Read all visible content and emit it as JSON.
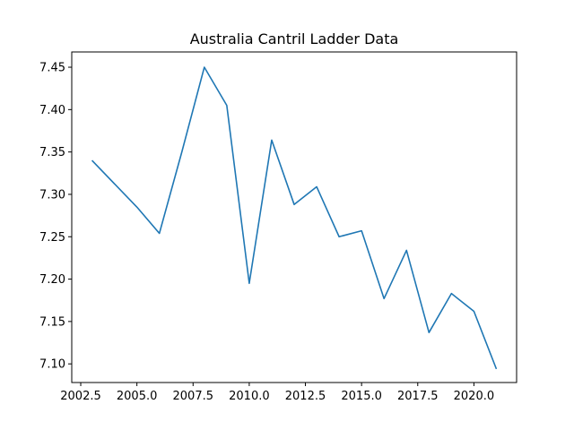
{
  "chart_data": {
    "type": "line",
    "title": "Australia Cantril Ladder Data",
    "xlabel": "",
    "ylabel": "",
    "xlim": [
      2002.1,
      2021.9
    ],
    "ylim": [
      7.078,
      7.468
    ],
    "x_ticks": [
      2002.5,
      2005.0,
      2007.5,
      2010.0,
      2012.5,
      2015.0,
      2017.5,
      2020.0
    ],
    "x_tick_labels": [
      "2002.5",
      "2005.0",
      "2007.5",
      "2010.0",
      "2012.5",
      "2015.0",
      "2017.5",
      "2020.0"
    ],
    "y_ticks": [
      7.1,
      7.15,
      7.2,
      7.25,
      7.3,
      7.35,
      7.4,
      7.45
    ],
    "y_tick_labels": [
      "7.10",
      "7.15",
      "7.20",
      "7.25",
      "7.30",
      "7.35",
      "7.40",
      "7.45"
    ],
    "grid": false,
    "series": [
      {
        "color": "#1f77b4",
        "x": [
          2003,
          2005,
          2006,
          2007,
          2008,
          2009,
          2010,
          2011,
          2012,
          2013,
          2014,
          2015,
          2016,
          2017,
          2018,
          2019,
          2020,
          2021
        ],
        "y": [
          7.34,
          7.285,
          7.254,
          7.35,
          7.45,
          7.405,
          7.195,
          7.364,
          7.288,
          7.309,
          7.25,
          7.257,
          7.177,
          7.234,
          7.137,
          7.183,
          7.162,
          7.094
        ]
      }
    ]
  }
}
